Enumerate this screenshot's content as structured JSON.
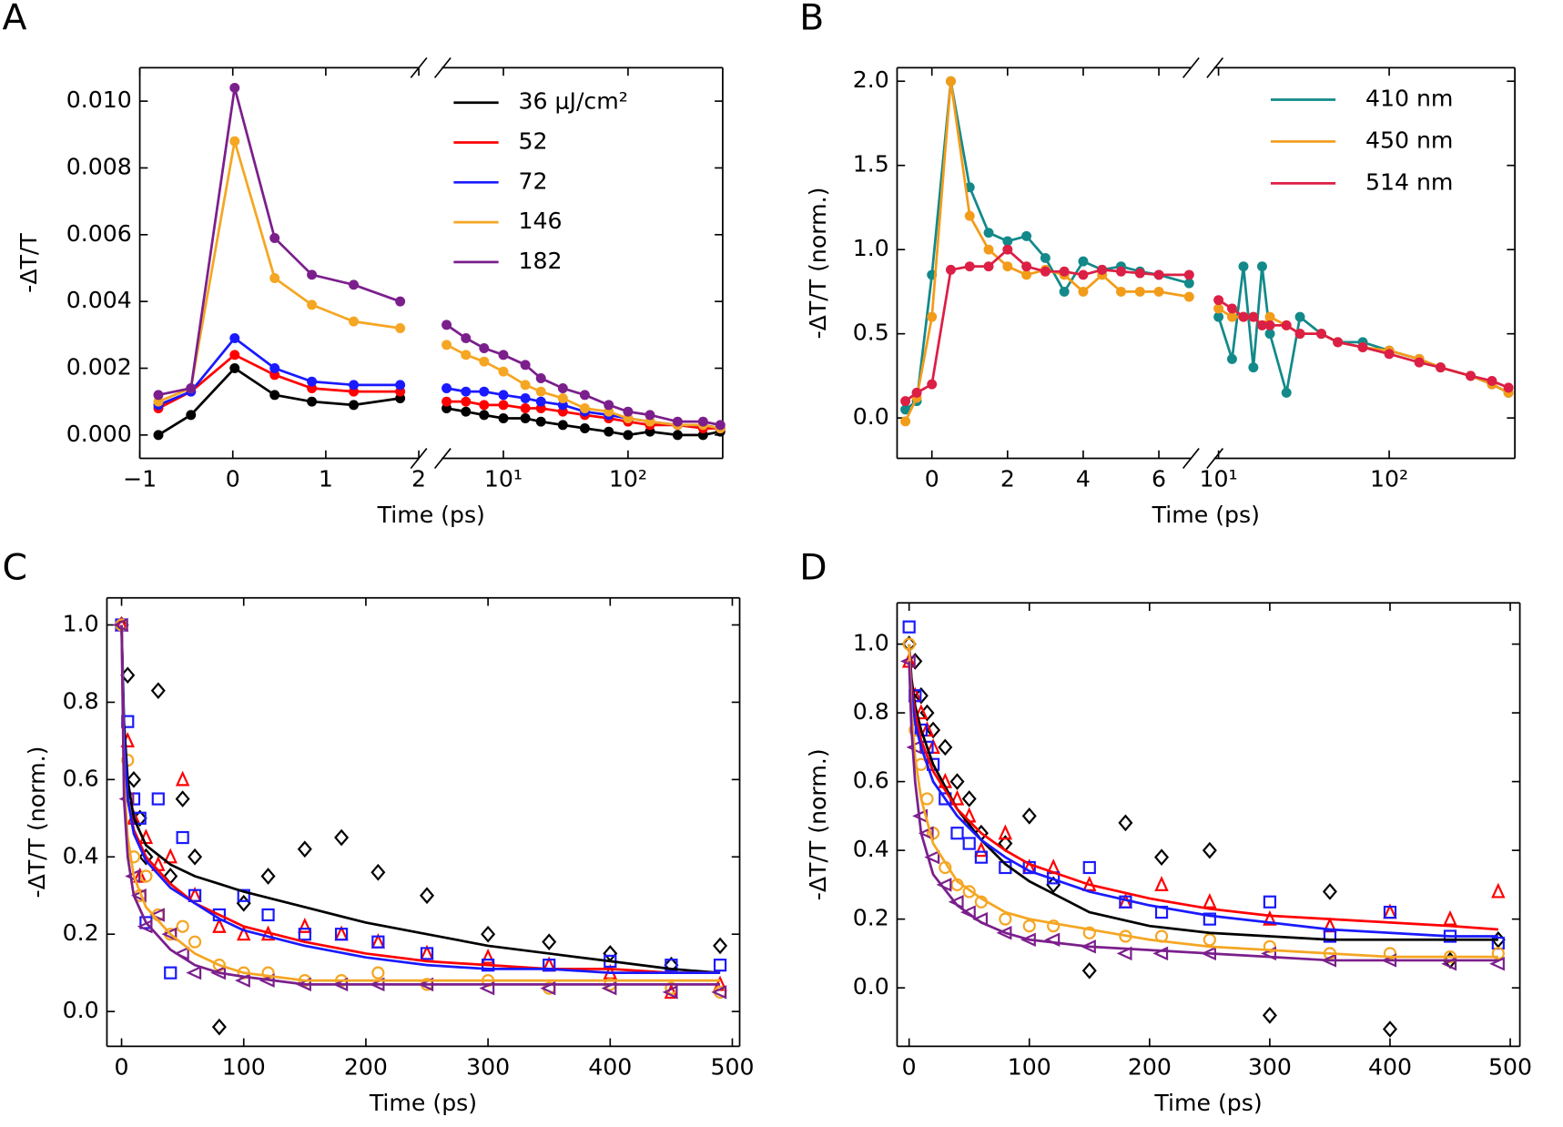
{
  "chart_data": [
    {
      "type": "line",
      "label": "A",
      "xlabel": "Time (ps)",
      "ylabel": "-ΔT/T",
      "ylim": [
        -0.0007,
        0.011
      ],
      "yticks": [
        {
          "value": 0,
          "label": "0.000"
        },
        {
          "value": 0.002,
          "label": "0.002"
        },
        {
          "value": 0.004,
          "label": "0.004"
        },
        {
          "value": 0.006,
          "label": "0.006"
        },
        {
          "value": 0.008,
          "label": "0.008"
        },
        {
          "value": 0.01,
          "label": "0.010"
        }
      ],
      "x": [
        -0.8,
        -0.45,
        0.02,
        0.45,
        0.85,
        1.3,
        1.8
      ],
      "xlim": [
        -1,
        2
      ],
      "xticks": [
        {
          "value": -1,
          "label": "−1"
        },
        0,
        1,
        2
      ],
      "x2": [
        3.5,
        5,
        7,
        10,
        15,
        20,
        30,
        45,
        70,
        100,
        150,
        250,
        400,
        550
      ],
      "x2lim": [
        3.2,
        575
      ],
      "x2log": true,
      "x2ticks": [
        {
          "value": 10,
          "label": "10¹"
        },
        {
          "value": 100,
          "label": "10²"
        }
      ],
      "legend": "upper right",
      "series": [
        {
          "name": "36 μJ/cm²",
          "color": "#000000",
          "values": [
            0.0,
            0.0006,
            0.002,
            0.0012,
            0.001,
            0.0009,
            0.0011
          ],
          "values2": [
            0.0008,
            0.0007,
            0.0006,
            0.0005,
            0.0005,
            0.0004,
            0.0003,
            0.0002,
            0.0001,
            0.0,
            0.0001,
            0.0,
            0.0,
            0.0001
          ]
        },
        {
          "name": "52",
          "color": "#ff0000",
          "values": [
            0.0008,
            0.0013,
            0.0024,
            0.0018,
            0.0014,
            0.0013,
            0.0013
          ],
          "values2": [
            0.001,
            0.001,
            0.0009,
            0.0009,
            0.0008,
            0.0008,
            0.0007,
            0.0006,
            0.0005,
            0.0004,
            0.0003,
            0.0003,
            0.0002,
            0.0002
          ]
        },
        {
          "name": "72",
          "color": "#1a1aff",
          "values": [
            0.0009,
            0.0013,
            0.0029,
            0.002,
            0.0016,
            0.0015,
            0.0015
          ],
          "values2": [
            0.0014,
            0.0013,
            0.0013,
            0.0012,
            0.0011,
            0.001,
            0.0009,
            0.0007,
            0.0006,
            0.0005,
            0.0004,
            0.0003,
            0.0003,
            0.0002
          ]
        },
        {
          "name": "146",
          "color": "#f5a623",
          "values": [
            0.001,
            0.0014,
            0.0088,
            0.0047,
            0.0039,
            0.0034,
            0.0032
          ],
          "values2": [
            0.0027,
            0.0024,
            0.0022,
            0.0019,
            0.0015,
            0.0013,
            0.0011,
            0.0008,
            0.0007,
            0.0005,
            0.0004,
            0.0003,
            0.0003,
            0.0002
          ]
        },
        {
          "name": "182",
          "color": "#7b1f8c",
          "values": [
            0.0012,
            0.0014,
            0.0104,
            0.0059,
            0.0048,
            0.0045,
            0.004
          ],
          "values2": [
            0.0033,
            0.0029,
            0.0026,
            0.0024,
            0.0021,
            0.0017,
            0.0014,
            0.0012,
            0.0009,
            0.0007,
            0.0006,
            0.0004,
            0.0004,
            0.0003
          ]
        }
      ]
    },
    {
      "type": "line",
      "label": "B",
      "xlabel": "Time (ps)",
      "ylabel": "-ΔT/T (norm.)",
      "ylim": [
        -0.24,
        2.08
      ],
      "yticks": [
        {
          "value": 0,
          "label": "0.0"
        },
        0.5,
        {
          "value": 1,
          "label": "1.0"
        },
        1.5,
        {
          "value": 2,
          "label": "2.0"
        }
      ],
      "x": [
        -0.7,
        -0.4,
        0,
        0.5,
        1,
        1.5,
        2,
        2.5,
        3,
        3.5,
        4,
        4.5,
        5,
        5.5,
        6,
        6.8
      ],
      "xlim": [
        -0.92,
        6.85
      ],
      "xticks": [
        0,
        2,
        4,
        6
      ],
      "x2": [
        10,
        12,
        14,
        16,
        18,
        20,
        25,
        30,
        40,
        50,
        70,
        100,
        150,
        200,
        300,
        400,
        500
      ],
      "x2lim": [
        9.4,
        545
      ],
      "x2log": true,
      "x2ticks": [
        {
          "value": 10,
          "label": "10¹"
        },
        {
          "value": 100,
          "label": "10²"
        }
      ],
      "legend": "upper right",
      "series": [
        {
          "name": "410 nm",
          "color": "#13898a",
          "values": [
            0.05,
            0.1,
            0.85,
            2.0,
            1.37,
            1.1,
            1.05,
            1.08,
            0.95,
            0.75,
            0.93,
            0.88,
            0.9,
            0.87,
            0.85,
            0.8
          ],
          "values2": [
            0.6,
            0.35,
            0.9,
            0.3,
            0.9,
            0.5,
            0.15,
            0.6,
            0.5,
            0.45,
            0.45,
            0.4,
            0.35,
            0.3,
            0.25,
            0.2,
            0.15
          ]
        },
        {
          "name": "450 nm",
          "color": "#f39c1a",
          "values": [
            -0.02,
            0.12,
            0.6,
            2.0,
            1.2,
            1.0,
            0.9,
            0.85,
            0.88,
            0.85,
            0.75,
            0.85,
            0.75,
            0.75,
            0.75,
            0.72
          ],
          "values2": [
            0.65,
            0.6,
            0.6,
            0.6,
            0.55,
            0.6,
            0.55,
            0.5,
            0.5,
            0.45,
            0.42,
            0.4,
            0.35,
            0.3,
            0.25,
            0.2,
            0.15
          ]
        },
        {
          "name": "514 nm",
          "color": "#dc1f45",
          "values": [
            0.1,
            0.15,
            0.2,
            0.88,
            0.9,
            0.9,
            1.0,
            0.9,
            0.87,
            0.87,
            0.85,
            0.88,
            0.87,
            0.86,
            0.85,
            0.85
          ],
          "values2": [
            0.7,
            0.65,
            0.6,
            0.6,
            0.55,
            0.55,
            0.55,
            0.5,
            0.5,
            0.45,
            0.42,
            0.38,
            0.33,
            0.3,
            0.25,
            0.22,
            0.18
          ]
        }
      ]
    },
    {
      "type": "scatter",
      "label": "C",
      "xlabel": "Time (ps)",
      "ylabel": "-ΔT/T (norm.)",
      "xlim": [
        -12,
        506
      ],
      "xticks": [
        0,
        100,
        200,
        300,
        400,
        500
      ],
      "ylim": [
        -0.09,
        1.07
      ],
      "yticks": [
        {
          "value": 0,
          "label": "0.0"
        },
        0.2,
        0.4,
        0.6,
        0.8,
        {
          "value": 1,
          "label": "1.0"
        }
      ],
      "x": [
        0,
        5,
        10,
        15,
        20,
        30,
        40,
        50,
        60,
        80,
        100,
        120,
        150,
        180,
        210,
        250,
        300,
        350,
        400,
        450,
        490
      ],
      "fit_x": [
        0,
        2,
        5,
        10,
        20,
        40,
        60,
        80,
        100,
        150,
        200,
        250,
        300,
        350,
        400,
        450,
        490
      ],
      "series": [
        {
          "color": "#000000",
          "marker": "diamond",
          "values": [
            1.0,
            0.87,
            0.6,
            0.5,
            0.4,
            0.83,
            0.35,
            0.55,
            0.4,
            -0.04,
            0.28,
            0.35,
            0.42,
            0.45,
            0.36,
            0.3,
            0.2,
            0.18,
            0.15,
            0.12,
            0.17
          ],
          "fit": [
            1.0,
            0.75,
            0.6,
            0.5,
            0.43,
            0.38,
            0.35,
            0.33,
            0.31,
            0.27,
            0.23,
            0.2,
            0.17,
            0.15,
            0.13,
            0.11,
            0.1
          ]
        },
        {
          "color": "#ff0000",
          "marker": "triangle-up",
          "values": [
            1.0,
            0.7,
            0.5,
            0.35,
            0.45,
            0.38,
            0.4,
            0.6,
            0.3,
            0.22,
            0.2,
            0.2,
            0.22,
            0.2,
            0.18,
            0.15,
            0.14,
            0.12,
            0.1,
            0.05,
            0.07
          ],
          "fit": [
            1.0,
            0.7,
            0.55,
            0.47,
            0.4,
            0.33,
            0.28,
            0.25,
            0.22,
            0.18,
            0.15,
            0.13,
            0.12,
            0.11,
            0.11,
            0.1,
            0.1
          ]
        },
        {
          "color": "#1a1aff",
          "marker": "square",
          "values": [
            1.0,
            0.75,
            0.55,
            0.5,
            0.23,
            0.55,
            0.1,
            0.45,
            0.3,
            0.25,
            0.3,
            0.25,
            0.2,
            0.2,
            0.18,
            0.15,
            0.12,
            0.12,
            0.13,
            0.12,
            0.12
          ],
          "fit": [
            1.0,
            0.72,
            0.55,
            0.46,
            0.39,
            0.32,
            0.28,
            0.24,
            0.21,
            0.17,
            0.14,
            0.12,
            0.11,
            0.11,
            0.1,
            0.1,
            0.1
          ]
        },
        {
          "color": "#f5a623",
          "marker": "circle",
          "values": [
            1.0,
            0.65,
            0.4,
            0.3,
            0.35,
            0.25,
            0.2,
            0.22,
            0.18,
            0.12,
            0.1,
            0.1,
            0.08,
            0.08,
            0.1,
            0.07,
            0.08,
            0.06,
            0.07,
            0.06,
            0.05
          ],
          "fit": [
            1.0,
            0.6,
            0.45,
            0.35,
            0.27,
            0.2,
            0.15,
            0.12,
            0.1,
            0.08,
            0.08,
            0.08,
            0.08,
            0.08,
            0.08,
            0.08,
            0.08
          ]
        },
        {
          "color": "#7b1f8c",
          "marker": "triangle-left",
          "values": [
            1.0,
            0.55,
            0.35,
            0.3,
            0.22,
            0.25,
            0.2,
            0.15,
            0.1,
            0.1,
            0.08,
            0.08,
            0.07,
            0.07,
            0.07,
            0.07,
            0.06,
            0.06,
            0.06,
            0.05,
            0.05
          ],
          "fit": [
            1.0,
            0.55,
            0.4,
            0.3,
            0.23,
            0.16,
            0.12,
            0.1,
            0.09,
            0.07,
            0.07,
            0.07,
            0.07,
            0.07,
            0.07,
            0.07,
            0.07
          ]
        }
      ]
    },
    {
      "type": "scatter",
      "label": "D",
      "xlabel": "Time (ps)",
      "ylabel": "-ΔT/T (norm.)",
      "xlim": [
        -10,
        508
      ],
      "xticks": [
        0,
        100,
        200,
        300,
        400,
        500
      ],
      "ylim": [
        -0.17,
        1.12
      ],
      "yticks": [
        {
          "value": 0,
          "label": "0.0"
        },
        0.2,
        0.4,
        0.6,
        0.8,
        {
          "value": 1,
          "label": "1.0"
        }
      ],
      "x": [
        0,
        5,
        10,
        15,
        20,
        30,
        40,
        50,
        60,
        80,
        100,
        120,
        150,
        180,
        210,
        250,
        300,
        350,
        400,
        450,
        490
      ],
      "fit_x": [
        0,
        2,
        5,
        10,
        20,
        40,
        60,
        80,
        100,
        150,
        200,
        250,
        300,
        350,
        400,
        450,
        490
      ],
      "series": [
        {
          "color": "#000000",
          "marker": "diamond",
          "values": [
            1.0,
            0.95,
            0.85,
            0.8,
            0.75,
            0.7,
            0.6,
            0.55,
            0.45,
            0.42,
            0.5,
            0.3,
            0.05,
            0.48,
            0.38,
            0.4,
            -0.08,
            0.28,
            -0.12,
            0.08,
            0.14
          ],
          "fit": [
            1.0,
            0.9,
            0.82,
            0.75,
            0.65,
            0.52,
            0.43,
            0.36,
            0.31,
            0.22,
            0.18,
            0.16,
            0.15,
            0.14,
            0.14,
            0.14,
            0.14
          ]
        },
        {
          "color": "#ff0000",
          "marker": "triangle-up",
          "values": [
            0.95,
            0.85,
            0.8,
            0.75,
            0.7,
            0.6,
            0.55,
            0.5,
            0.4,
            0.45,
            0.35,
            0.35,
            0.3,
            0.25,
            0.3,
            0.25,
            0.2,
            0.18,
            0.22,
            0.2,
            0.28
          ],
          "fit": [
            1.0,
            0.88,
            0.8,
            0.72,
            0.63,
            0.52,
            0.45,
            0.4,
            0.36,
            0.3,
            0.26,
            0.23,
            0.21,
            0.2,
            0.19,
            0.18,
            0.17
          ]
        },
        {
          "color": "#1a1aff",
          "marker": "square",
          "values": [
            1.05,
            0.85,
            0.75,
            0.7,
            0.65,
            0.55,
            0.45,
            0.42,
            0.38,
            0.35,
            0.35,
            0.32,
            0.35,
            0.25,
            0.22,
            0.2,
            0.25,
            0.15,
            0.22,
            0.15,
            0.13
          ],
          "fit": [
            1.0,
            0.86,
            0.77,
            0.7,
            0.6,
            0.5,
            0.43,
            0.38,
            0.34,
            0.28,
            0.24,
            0.21,
            0.19,
            0.17,
            0.16,
            0.15,
            0.15
          ]
        },
        {
          "color": "#f5a623",
          "marker": "circle",
          "values": [
            1.0,
            0.75,
            0.65,
            0.55,
            0.45,
            0.35,
            0.3,
            0.28,
            0.25,
            0.2,
            0.18,
            0.18,
            0.16,
            0.15,
            0.15,
            0.14,
            0.12,
            0.1,
            0.1,
            0.09,
            0.1
          ],
          "fit": [
            1.0,
            0.8,
            0.67,
            0.55,
            0.42,
            0.31,
            0.26,
            0.22,
            0.2,
            0.17,
            0.14,
            0.12,
            0.11,
            0.1,
            0.09,
            0.09,
            0.09
          ]
        },
        {
          "color": "#7b1f8c",
          "marker": "triangle-left",
          "values": [
            0.95,
            0.7,
            0.5,
            0.45,
            0.38,
            0.3,
            0.25,
            0.22,
            0.2,
            0.16,
            0.14,
            0.14,
            0.12,
            0.1,
            0.1,
            0.1,
            0.1,
            0.08,
            0.08,
            0.07,
            0.07
          ],
          "fit": [
            0.95,
            0.75,
            0.6,
            0.45,
            0.33,
            0.24,
            0.19,
            0.16,
            0.14,
            0.12,
            0.11,
            0.1,
            0.09,
            0.08,
            0.08,
            0.08,
            0.08
          ]
        }
      ]
    }
  ]
}
